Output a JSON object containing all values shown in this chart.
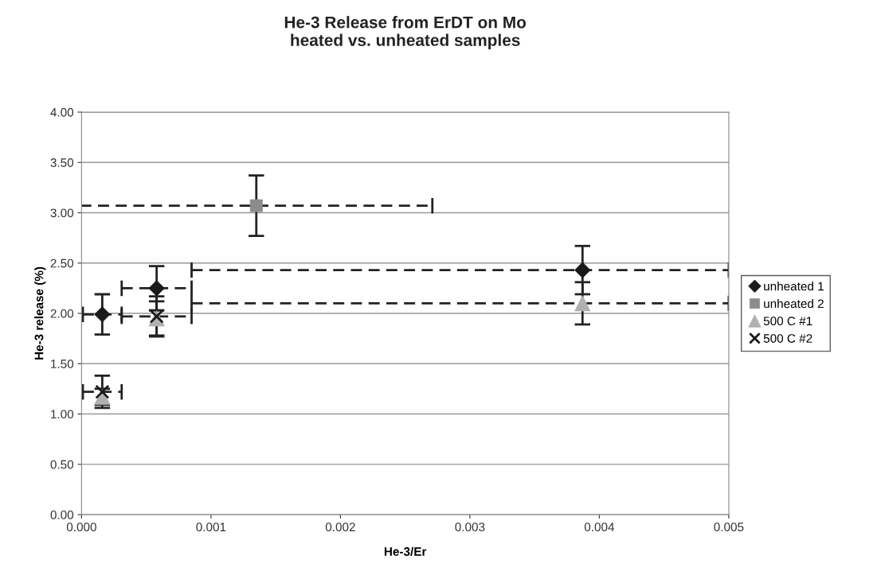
{
  "chart_data": {
    "type": "scatter",
    "title": "He-3 Release from ErDT on Mo\nheated vs. unheated samples",
    "xlabel": "He-3/Er",
    "ylabel": "He-3 release (%)",
    "xlim": [
      0,
      0.005
    ],
    "xticks": [
      {
        "value": 0,
        "label": "0.000"
      },
      0.001,
      0.002,
      0.003,
      0.004,
      0.005
    ],
    "ylim": [
      0,
      4
    ],
    "yticks": [
      {
        "value": 0,
        "label": "0.00"
      },
      {
        "value": 0.5,
        "label": "0.50"
      },
      {
        "value": 1,
        "label": "1.00"
      },
      {
        "value": 1.5,
        "label": "1.50"
      },
      {
        "value": 2,
        "label": "2.00"
      },
      {
        "value": 2.5,
        "label": "2.50"
      },
      {
        "value": 3,
        "label": "3.00"
      },
      {
        "value": 3.5,
        "label": "3.50"
      },
      {
        "value": 4,
        "label": "4.00"
      }
    ],
    "grid": "y",
    "legend": "right",
    "series": [
      {
        "name": "unheated 1",
        "color": "#1a1a1a",
        "marker": "diamond",
        "x": [
          0.00016,
          0.00058,
          0.00387
        ],
        "values": [
          1.99,
          2.25,
          2.43
        ],
        "errors": [
          0.2,
          0.22,
          0.24
        ],
        "xerrors": [
          0.00015,
          0.00027,
          [
            0.00085,
            0.005
          ]
        ]
      },
      {
        "name": "unheated 2",
        "color": "#8c8c8c",
        "marker": "square",
        "x": [
          0.00135
        ],
        "values": [
          3.07
        ],
        "errors": [
          0.3
        ],
        "xerrors": [
          0.00136
        ]
      },
      {
        "name": "500 C #1",
        "color": "#b0b0b0",
        "marker": "triangle",
        "x": [
          0.00016,
          0.00058,
          0.00387
        ],
        "values": [
          1.17,
          1.95,
          2.1
        ],
        "errors": [
          0.08,
          0.17,
          0.21
        ],
        "xerrors": [
          null,
          null,
          [
            0.00085,
            0.005
          ]
        ]
      },
      {
        "name": "500 C #2",
        "color": "#1a1a1a",
        "marker": "cross",
        "x": [
          0.00016,
          0.00058
        ],
        "values": [
          1.22,
          1.97
        ],
        "errors": [
          0.16,
          0.2
        ],
        "xerrors": [
          0.00015,
          0.00027
        ]
      }
    ]
  }
}
